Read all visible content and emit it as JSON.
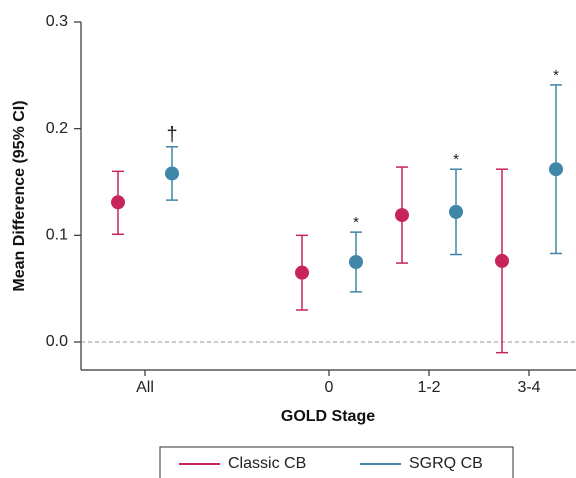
{
  "chart_data": {
    "type": "scatter",
    "categories": [
      "All",
      "0",
      "1-2",
      "3-4"
    ],
    "xlabel": "GOLD Stage",
    "ylabel": "Mean Difference (95% CI)",
    "ylim": [
      0.0,
      0.3
    ],
    "yticks": [
      "0.0",
      "0.1",
      "0.2",
      "0.3"
    ],
    "reference_line": 0.0,
    "legend_position": "bottom",
    "series": [
      {
        "name": "Classic CB",
        "color": "#c8245a",
        "points": [
          {
            "category": "All",
            "mean": 0.131,
            "lower": 0.101,
            "upper": 0.16,
            "marker": ""
          },
          {
            "category": "0",
            "mean": 0.065,
            "lower": 0.03,
            "upper": 0.1,
            "marker": ""
          },
          {
            "category": "1-2",
            "mean": 0.119,
            "lower": 0.074,
            "upper": 0.164,
            "marker": ""
          },
          {
            "category": "3-4",
            "mean": 0.076,
            "lower": -0.01,
            "upper": 0.162,
            "marker": ""
          }
        ]
      },
      {
        "name": "SGRQ CB",
        "color": "#3f87a8",
        "points": [
          {
            "category": "All",
            "mean": 0.158,
            "lower": 0.133,
            "upper": 0.183,
            "marker": "†"
          },
          {
            "category": "0",
            "mean": 0.075,
            "lower": 0.047,
            "upper": 0.103,
            "marker": "*"
          },
          {
            "category": "1-2",
            "mean": 0.122,
            "lower": 0.082,
            "upper": 0.162,
            "marker": "*"
          },
          {
            "category": "3-4",
            "mean": 0.162,
            "lower": 0.083,
            "upper": 0.241,
            "marker": "*"
          }
        ]
      }
    ]
  }
}
